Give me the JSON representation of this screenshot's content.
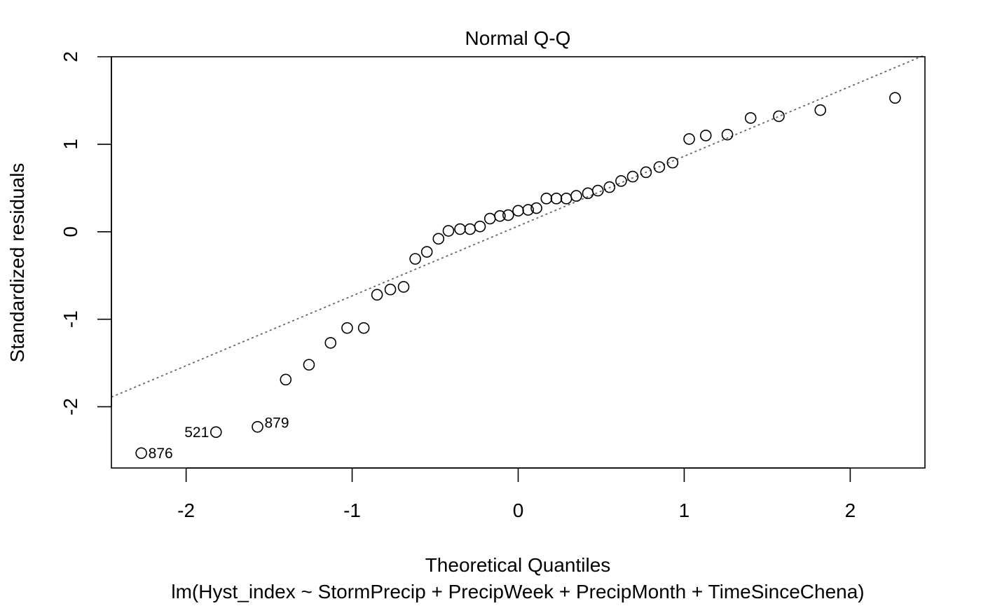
{
  "chart_data": {
    "type": "scatter",
    "title": "Normal Q-Q",
    "xlabel": "Theoretical Quantiles",
    "ylabel": "Standardized residuals",
    "subtitle": "lm(Hyst_index ~ StormPrecip + PrecipWeek + PrecipMonth + TimeSinceChena)",
    "xlim": [
      -2.45,
      2.45
    ],
    "ylim": [
      -2.7,
      2.0
    ],
    "xticks": [
      -2,
      -1,
      0,
      1,
      2
    ],
    "yticks": [
      -2,
      -1,
      0,
      1,
      2
    ],
    "xtick_labels": [
      "-2",
      "-1",
      "0",
      "1",
      "2"
    ],
    "ytick_labels": [
      "-2",
      "-1",
      "0",
      "1",
      "2"
    ],
    "grid": false,
    "reference_line": {
      "style": "dotted",
      "color": "#666666",
      "x": [
        -2.45,
        2.45
      ],
      "y": [
        -1.89,
        2.02
      ]
    },
    "points": [
      {
        "x": -2.27,
        "y": -2.53,
        "label": "876"
      },
      {
        "x": -1.82,
        "y": -2.29,
        "label": "521"
      },
      {
        "x": -1.57,
        "y": -2.23,
        "label": "879"
      },
      {
        "x": -1.4,
        "y": -1.69
      },
      {
        "x": -1.26,
        "y": -1.52
      },
      {
        "x": -1.13,
        "y": -1.27
      },
      {
        "x": -1.03,
        "y": -1.1
      },
      {
        "x": -0.93,
        "y": -1.1
      },
      {
        "x": -0.85,
        "y": -0.72
      },
      {
        "x": -0.77,
        "y": -0.66
      },
      {
        "x": -0.69,
        "y": -0.63
      },
      {
        "x": -0.62,
        "y": -0.31
      },
      {
        "x": -0.55,
        "y": -0.23
      },
      {
        "x": -0.48,
        "y": -0.08
      },
      {
        "x": -0.42,
        "y": 0.01
      },
      {
        "x": -0.35,
        "y": 0.03
      },
      {
        "x": -0.29,
        "y": 0.03
      },
      {
        "x": -0.23,
        "y": 0.06
      },
      {
        "x": -0.17,
        "y": 0.15
      },
      {
        "x": -0.11,
        "y": 0.18
      },
      {
        "x": -0.06,
        "y": 0.19
      },
      {
        "x": 0.0,
        "y": 0.24
      },
      {
        "x": 0.06,
        "y": 0.25
      },
      {
        "x": 0.11,
        "y": 0.27
      },
      {
        "x": 0.17,
        "y": 0.38
      },
      {
        "x": 0.23,
        "y": 0.38
      },
      {
        "x": 0.29,
        "y": 0.38
      },
      {
        "x": 0.35,
        "y": 0.41
      },
      {
        "x": 0.42,
        "y": 0.44
      },
      {
        "x": 0.48,
        "y": 0.47
      },
      {
        "x": 0.55,
        "y": 0.51
      },
      {
        "x": 0.62,
        "y": 0.58
      },
      {
        "x": 0.69,
        "y": 0.63
      },
      {
        "x": 0.77,
        "y": 0.68
      },
      {
        "x": 0.85,
        "y": 0.74
      },
      {
        "x": 0.93,
        "y": 0.79
      },
      {
        "x": 1.03,
        "y": 1.06
      },
      {
        "x": 1.13,
        "y": 1.1
      },
      {
        "x": 1.26,
        "y": 1.11
      },
      {
        "x": 1.4,
        "y": 1.3
      },
      {
        "x": 1.57,
        "y": 1.32
      },
      {
        "x": 1.82,
        "y": 1.39
      },
      {
        "x": 2.27,
        "y": 1.53
      }
    ]
  }
}
